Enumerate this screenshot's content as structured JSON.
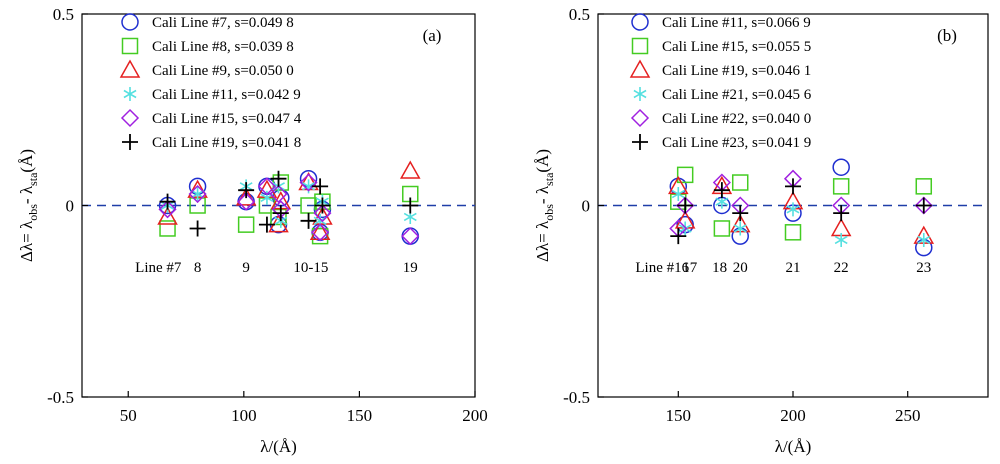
{
  "chart_data": [
    {
      "type": "scatter",
      "panel_label": "(a)",
      "xlabel": "λ/(Å)",
      "ylabel": "Δλ= λ_obs - λ_sta(Å)",
      "ylabel_parts": {
        "main": "Δλ= λ",
        "sub1": "obs",
        "mid": "- λ",
        "sub2": "sta",
        "tail": "(Å)"
      },
      "xlim": [
        30,
        200
      ],
      "ylim": [
        -0.5,
        0.5
      ],
      "xticks": [
        50,
        100,
        150,
        200
      ],
      "xtick_labels": [
        "50",
        "100",
        "150",
        "200"
      ],
      "yticks": [
        -0.5,
        0,
        0.5
      ],
      "ytick_labels": [
        "-0.5",
        "0",
        "0.5"
      ],
      "zero_line": {
        "y": 0,
        "style": "dashed",
        "color": "#1f3ea8"
      },
      "legend_position": "top-left",
      "series": [
        {
          "name": "Cali Line #7, s=0.049 8",
          "marker": "circle",
          "color": "#1f2fd0",
          "points": [
            [
              67,
              0.0
            ],
            [
              80,
              0.05
            ],
            [
              101,
              0.01
            ],
            [
              110,
              0.05
            ],
            [
              115,
              -0.05
            ],
            [
              116,
              0.02
            ],
            [
              128,
              0.07
            ],
            [
              133,
              -0.07
            ],
            [
              134,
              -0.01
            ],
            [
              172,
              -0.08
            ]
          ]
        },
        {
          "name": "Cali Line #8, s=0.039 8",
          "marker": "square",
          "color": "#44cc22",
          "points": [
            [
              67,
              -0.06
            ],
            [
              80,
              0.0
            ],
            [
              101,
              -0.05
            ],
            [
              110,
              0.0
            ],
            [
              115,
              -0.03
            ],
            [
              116,
              0.06
            ],
            [
              128,
              0.0
            ],
            [
              133,
              -0.08
            ],
            [
              134,
              0.01
            ],
            [
              172,
              0.03
            ]
          ]
        },
        {
          "name": "Cali Line #9, s=0.050 0",
          "marker": "triangle",
          "color": "#e52020",
          "points": [
            [
              67,
              -0.03
            ],
            [
              80,
              0.04
            ],
            [
              101,
              0.02
            ],
            [
              110,
              0.04
            ],
            [
              115,
              -0.05
            ],
            [
              116,
              0.01
            ],
            [
              128,
              0.06
            ],
            [
              133,
              -0.07
            ],
            [
              134,
              -0.03
            ],
            [
              172,
              0.09
            ]
          ]
        },
        {
          "name": "Cali Line #11, s=0.042 9",
          "marker": "asterisk",
          "color": "#55e0e0",
          "points": [
            [
              67,
              0.0
            ],
            [
              80,
              0.03
            ],
            [
              101,
              0.05
            ],
            [
              110,
              0.02
            ],
            [
              115,
              0.05
            ],
            [
              116,
              -0.04
            ],
            [
              128,
              0.05
            ],
            [
              133,
              -0.04
            ],
            [
              134,
              0.01
            ],
            [
              172,
              -0.03
            ]
          ]
        },
        {
          "name": "Cali Line #15, s=0.047 4",
          "marker": "diamond",
          "color": "#a020e0",
          "points": [
            [
              67,
              -0.01
            ],
            [
              80,
              0.03
            ],
            [
              101,
              0.01
            ],
            [
              110,
              0.05
            ],
            [
              115,
              0.03
            ],
            [
              116,
              -0.01
            ],
            [
              128,
              0.06
            ],
            [
              133,
              -0.07
            ],
            [
              134,
              -0.02
            ],
            [
              172,
              -0.08
            ]
          ]
        },
        {
          "name": "Cali Line #19, s=0.041 8",
          "marker": "plus",
          "color": "#000000",
          "points": [
            [
              67,
              0.01
            ],
            [
              80,
              -0.06
            ],
            [
              101,
              0.04
            ],
            [
              110,
              -0.05
            ],
            [
              115,
              0.07
            ],
            [
              116,
              -0.02
            ],
            [
              128,
              -0.04
            ],
            [
              133,
              0.05
            ],
            [
              134,
              0.0
            ],
            [
              172,
              0.0
            ]
          ]
        }
      ],
      "annotations": [
        {
          "text": "Line #7",
          "x": 63,
          "y": -0.16
        },
        {
          "text": "8",
          "x": 80,
          "y": -0.16
        },
        {
          "text": "9",
          "x": 101,
          "y": -0.16
        },
        {
          "text": "10-15",
          "x": 129,
          "y": -0.16
        },
        {
          "text": "19",
          "x": 172,
          "y": -0.16
        }
      ]
    },
    {
      "type": "scatter",
      "panel_label": "(b)",
      "xlabel": "λ/(Å)",
      "ylabel": "Δλ= λ_obs - λ_sta(Å)",
      "ylabel_parts": {
        "main": "Δλ= λ",
        "sub1": "obs",
        "mid": "- λ",
        "sub2": "sta",
        "tail": "(Å)"
      },
      "xlim": [
        115,
        285
      ],
      "ylim": [
        -0.5,
        0.5
      ],
      "xticks": [
        150,
        200,
        250
      ],
      "xtick_labels": [
        "150",
        "200",
        "250"
      ],
      "yticks": [
        -0.5,
        0,
        0.5
      ],
      "ytick_labels": [
        "-0.5",
        "0",
        "0.5"
      ],
      "zero_line": {
        "y": 0,
        "style": "dashed",
        "color": "#1f3ea8"
      },
      "legend_position": "top-left",
      "series": [
        {
          "name": "Cali Line #11, s=0.066 9",
          "marker": "circle",
          "color": "#1f2fd0",
          "points": [
            [
              150,
              0.05
            ],
            [
              153,
              -0.05
            ],
            [
              169,
              0.0
            ],
            [
              177,
              -0.08
            ],
            [
              200,
              -0.02
            ],
            [
              221,
              0.1
            ],
            [
              257,
              -0.11
            ]
          ]
        },
        {
          "name": "Cali Line #15, s=0.055 5",
          "marker": "square",
          "color": "#44cc22",
          "points": [
            [
              150,
              0.01
            ],
            [
              153,
              0.08
            ],
            [
              169,
              -0.06
            ],
            [
              177,
              0.06
            ],
            [
              200,
              -0.07
            ],
            [
              221,
              0.05
            ],
            [
              257,
              0.05
            ]
          ]
        },
        {
          "name": "Cali Line #19, s=0.046 1",
          "marker": "triangle",
          "color": "#e52020",
          "points": [
            [
              150,
              0.05
            ],
            [
              153,
              -0.04
            ],
            [
              169,
              0.05
            ],
            [
              177,
              -0.05
            ],
            [
              200,
              0.01
            ],
            [
              221,
              -0.06
            ],
            [
              257,
              -0.08
            ]
          ]
        },
        {
          "name": "Cali Line #21, s=0.045 6",
          "marker": "asterisk",
          "color": "#55e0e0",
          "points": [
            [
              150,
              0.03
            ],
            [
              153,
              -0.06
            ],
            [
              169,
              0.01
            ],
            [
              177,
              -0.06
            ],
            [
              200,
              -0.01
            ],
            [
              221,
              -0.09
            ],
            [
              257,
              -0.09
            ]
          ]
        },
        {
          "name": "Cali Line #22, s=0.040 0",
          "marker": "diamond",
          "color": "#a020e0",
          "points": [
            [
              150,
              -0.06
            ],
            [
              153,
              0.0
            ],
            [
              169,
              0.06
            ],
            [
              177,
              0.0
            ],
            [
              200,
              0.07
            ],
            [
              221,
              0.0
            ],
            [
              257,
              0.0
            ]
          ]
        },
        {
          "name": "Cali Line #23, s=0.041 9",
          "marker": "plus",
          "color": "#000000",
          "points": [
            [
              150,
              -0.08
            ],
            [
              153,
              0.0
            ],
            [
              169,
              0.04
            ],
            [
              177,
              -0.02
            ],
            [
              200,
              0.05
            ],
            [
              221,
              -0.02
            ],
            [
              257,
              0.0
            ]
          ]
        }
      ],
      "annotations": [
        {
          "text": "Line #16",
          "x": 143,
          "y": -0.16
        },
        {
          "text": "17",
          "x": 155,
          "y": -0.16
        },
        {
          "text": "18",
          "x": 168,
          "y": -0.16
        },
        {
          "text": "20",
          "x": 177,
          "y": -0.16
        },
        {
          "text": "21",
          "x": 200,
          "y": -0.16
        },
        {
          "text": "22",
          "x": 221,
          "y": -0.16
        },
        {
          "text": "23",
          "x": 257,
          "y": -0.16
        }
      ]
    }
  ]
}
